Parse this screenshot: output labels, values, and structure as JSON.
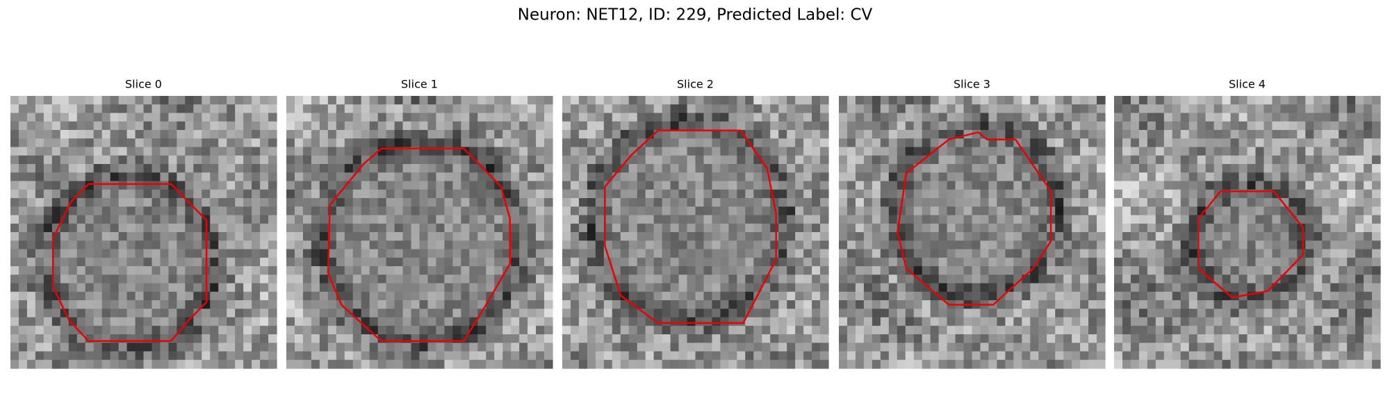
{
  "title": "Neuron: NET12, ID: 229, Predicted Label: CV",
  "slices": [
    "Slice 0",
    "Slice 1",
    "Slice 2",
    "Slice 3",
    "Slice 4"
  ]
}
